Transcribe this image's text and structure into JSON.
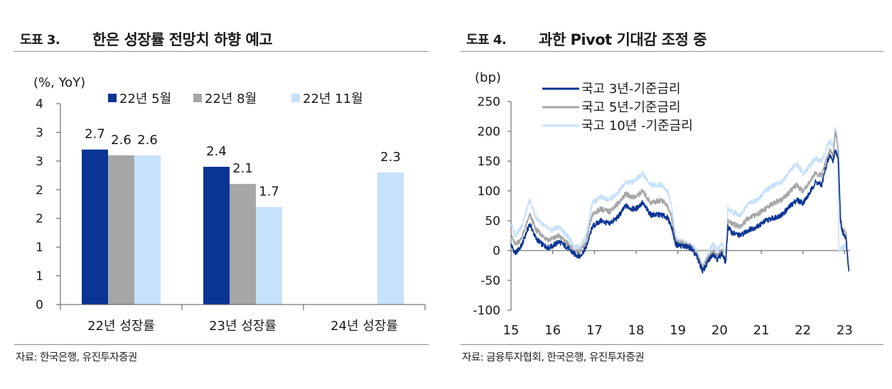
{
  "figure3": {
    "number": "도표 3.",
    "title": "한은 성장률 전망치 하향 예고",
    "source": "자료: 한국은행, 유진투자증권"
  },
  "figure4": {
    "number": "도표 4.",
    "title": "과한 Pivot 기대감 조정 중",
    "source": "자료: 금융투자협회, 한국은행, 유진투자증권"
  },
  "chart_data": [
    {
      "type": "bar",
      "unit_label": "(%, YoY)",
      "categories": [
        "22년 성장률",
        "23년 성장률",
        "24년 성장률"
      ],
      "series": [
        {
          "name": "22년 5월",
          "color": "#0a3595",
          "values": [
            2.7,
            2.4,
            null
          ]
        },
        {
          "name": "22년 8월",
          "color": "#a6a6a6",
          "values": [
            2.6,
            2.1,
            null
          ]
        },
        {
          "name": "22년 11월",
          "color": "#c6e1fa",
          "values": [
            2.6,
            1.7,
            2.3
          ]
        }
      ],
      "data_labels": [
        [
          "2.7",
          "2.4",
          ""
        ],
        [
          "2.6",
          "2.1",
          ""
        ],
        [
          "2.6",
          "1.7",
          "2.3"
        ]
      ],
      "y_tick_labels": [
        "0",
        "1",
        "1",
        "2",
        "2",
        "3",
        "3",
        "4"
      ],
      "ylim": [
        0,
        3.5
      ],
      "legend": "top",
      "grid": false
    },
    {
      "type": "line",
      "unit_label": "(bp)",
      "ylim": [
        -100,
        250
      ],
      "y_ticks": [
        -100,
        -50,
        0,
        50,
        100,
        150,
        200,
        250
      ],
      "x_ticks": [
        "15",
        "16",
        "17",
        "18",
        "19",
        "20",
        "21",
        "22",
        "23"
      ],
      "x_range": [
        2015.0,
        2023.13
      ],
      "legend": "top-left",
      "grid": false,
      "series": [
        {
          "name": "국고 3년-기준금리",
          "color": "#0a3595",
          "points": [
            [
              2015.0,
              10
            ],
            [
              2015.1,
              -5
            ],
            [
              2015.25,
              8
            ],
            [
              2015.45,
              45
            ],
            [
              2015.6,
              20
            ],
            [
              2015.75,
              10
            ],
            [
              2015.9,
              5
            ],
            [
              2016.0,
              8
            ],
            [
              2016.15,
              15
            ],
            [
              2016.35,
              5
            ],
            [
              2016.5,
              -5
            ],
            [
              2016.65,
              -10
            ],
            [
              2016.8,
              5
            ],
            [
              2016.95,
              40
            ],
            [
              2017.15,
              50
            ],
            [
              2017.35,
              45
            ],
            [
              2017.55,
              55
            ],
            [
              2017.75,
              75
            ],
            [
              2017.9,
              70
            ],
            [
              2018.0,
              70
            ],
            [
              2018.15,
              80
            ],
            [
              2018.35,
              60
            ],
            [
              2018.6,
              60
            ],
            [
              2018.75,
              55
            ],
            [
              2018.85,
              40
            ],
            [
              2018.95,
              10
            ],
            [
              2019.1,
              8
            ],
            [
              2019.3,
              5
            ],
            [
              2019.45,
              -10
            ],
            [
              2019.6,
              -35
            ],
            [
              2019.75,
              -15
            ],
            [
              2019.85,
              -5
            ],
            [
              2019.95,
              -15
            ],
            [
              2020.05,
              -5
            ],
            [
              2020.15,
              -20
            ],
            [
              2020.2,
              40
            ],
            [
              2020.3,
              30
            ],
            [
              2020.5,
              25
            ],
            [
              2020.7,
              35
            ],
            [
              2020.9,
              40
            ],
            [
              2021.1,
              50
            ],
            [
              2021.3,
              55
            ],
            [
              2021.5,
              60
            ],
            [
              2021.7,
              75
            ],
            [
              2021.85,
              85
            ],
            [
              2022.0,
              80
            ],
            [
              2022.15,
              95
            ],
            [
              2022.3,
              115
            ],
            [
              2022.45,
              110
            ],
            [
              2022.55,
              140
            ],
            [
              2022.65,
              160
            ],
            [
              2022.72,
              150
            ],
            [
              2022.78,
              170
            ],
            [
              2022.85,
              150
            ],
            [
              2022.9,
              50
            ],
            [
              2022.95,
              30
            ],
            [
              2023.03,
              20
            ],
            [
              2023.1,
              -35
            ]
          ]
        },
        {
          "name": "국고 5년-기준금리",
          "color": "#a6a6a6",
          "points": [
            [
              2015.0,
              25
            ],
            [
              2015.1,
              10
            ],
            [
              2015.25,
              20
            ],
            [
              2015.45,
              60
            ],
            [
              2015.6,
              35
            ],
            [
              2015.75,
              25
            ],
            [
              2015.9,
              18
            ],
            [
              2016.0,
              20
            ],
            [
              2016.15,
              25
            ],
            [
              2016.35,
              12
            ],
            [
              2016.5,
              0
            ],
            [
              2016.65,
              -3
            ],
            [
              2016.8,
              15
            ],
            [
              2016.95,
              60
            ],
            [
              2017.15,
              70
            ],
            [
              2017.35,
              65
            ],
            [
              2017.55,
              78
            ],
            [
              2017.75,
              95
            ],
            [
              2017.9,
              90
            ],
            [
              2018.0,
              90
            ],
            [
              2018.15,
              100
            ],
            [
              2018.35,
              80
            ],
            [
              2018.6,
              85
            ],
            [
              2018.75,
              75
            ],
            [
              2018.85,
              55
            ],
            [
              2018.95,
              15
            ],
            [
              2019.1,
              12
            ],
            [
              2019.3,
              8
            ],
            [
              2019.45,
              -5
            ],
            [
              2019.6,
              -30
            ],
            [
              2019.75,
              -10
            ],
            [
              2019.85,
              0
            ],
            [
              2019.95,
              -10
            ],
            [
              2020.05,
              0
            ],
            [
              2020.15,
              -15
            ],
            [
              2020.2,
              50
            ],
            [
              2020.3,
              45
            ],
            [
              2020.5,
              40
            ],
            [
              2020.7,
              55
            ],
            [
              2020.9,
              60
            ],
            [
              2021.1,
              70
            ],
            [
              2021.3,
              80
            ],
            [
              2021.5,
              85
            ],
            [
              2021.7,
              100
            ],
            [
              2021.85,
              110
            ],
            [
              2022.0,
              100
            ],
            [
              2022.15,
              115
            ],
            [
              2022.3,
              130
            ],
            [
              2022.45,
              125
            ],
            [
              2022.55,
              150
            ],
            [
              2022.65,
              170
            ],
            [
              2022.72,
              160
            ],
            [
              2022.78,
              200
            ],
            [
              2022.85,
              170
            ],
            [
              2022.9,
              60
            ],
            [
              2022.95,
              35
            ],
            [
              2023.03,
              30
            ],
            [
              2023.1,
              -30
            ]
          ]
        },
        {
          "name": "국고 10년 -기준금리",
          "color": "#c6e1fa",
          "points": [
            [
              2015.0,
              45
            ],
            [
              2015.1,
              25
            ],
            [
              2015.25,
              40
            ],
            [
              2015.45,
              85
            ],
            [
              2015.6,
              55
            ],
            [
              2015.75,
              45
            ],
            [
              2015.9,
              35
            ],
            [
              2016.0,
              35
            ],
            [
              2016.15,
              40
            ],
            [
              2016.35,
              25
            ],
            [
              2016.5,
              8
            ],
            [
              2016.65,
              5
            ],
            [
              2016.8,
              25
            ],
            [
              2016.95,
              80
            ],
            [
              2017.15,
              90
            ],
            [
              2017.35,
              85
            ],
            [
              2017.55,
              95
            ],
            [
              2017.75,
              115
            ],
            [
              2017.9,
              115
            ],
            [
              2018.0,
              120
            ],
            [
              2018.15,
              130
            ],
            [
              2018.35,
              110
            ],
            [
              2018.6,
              110
            ],
            [
              2018.75,
              100
            ],
            [
              2018.85,
              75
            ],
            [
              2018.95,
              20
            ],
            [
              2019.1,
              15
            ],
            [
              2019.3,
              10
            ],
            [
              2019.45,
              0
            ],
            [
              2019.6,
              -25
            ],
            [
              2019.75,
              0
            ],
            [
              2019.85,
              10
            ],
            [
              2019.95,
              0
            ],
            [
              2020.05,
              10
            ],
            [
              2020.15,
              -5
            ],
            [
              2020.2,
              70
            ],
            [
              2020.3,
              65
            ],
            [
              2020.5,
              60
            ],
            [
              2020.7,
              80
            ],
            [
              2020.9,
              85
            ],
            [
              2021.1,
              100
            ],
            [
              2021.3,
              110
            ],
            [
              2021.5,
              115
            ],
            [
              2021.7,
              135
            ],
            [
              2021.85,
              145
            ],
            [
              2022.0,
              130
            ],
            [
              2022.15,
              140
            ],
            [
              2022.3,
              155
            ],
            [
              2022.45,
              150
            ],
            [
              2022.55,
              170
            ],
            [
              2022.65,
              185
            ],
            [
              2022.72,
              175
            ],
            [
              2022.78,
              205
            ],
            [
              2022.83,
              185
            ],
            [
              2022.86,
              0
            ],
            [
              2022.95,
              5
            ],
            [
              2023.03,
              10
            ],
            [
              2023.1,
              -20
            ]
          ]
        }
      ]
    }
  ]
}
